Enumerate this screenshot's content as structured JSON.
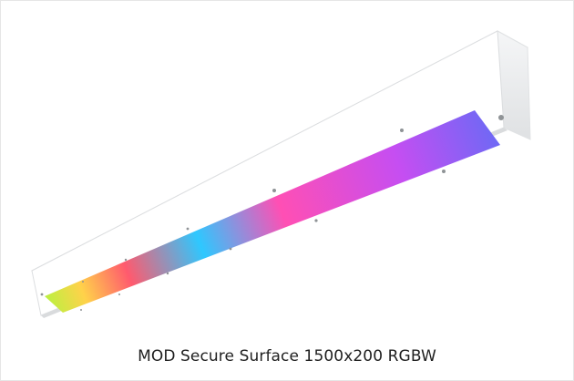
{
  "product": {
    "title": "MOD Secure Surface 1500x200 RGBW"
  },
  "colors": {
    "fixture_body": "#ffffff",
    "fixture_shadow": "#d9dbdd",
    "led_gradient": [
      "#b8f240",
      "#ffd24a",
      "#ff5a6e",
      "#2ec8ff",
      "#ff4fb4",
      "#c54ef2",
      "#6a6af5"
    ]
  }
}
